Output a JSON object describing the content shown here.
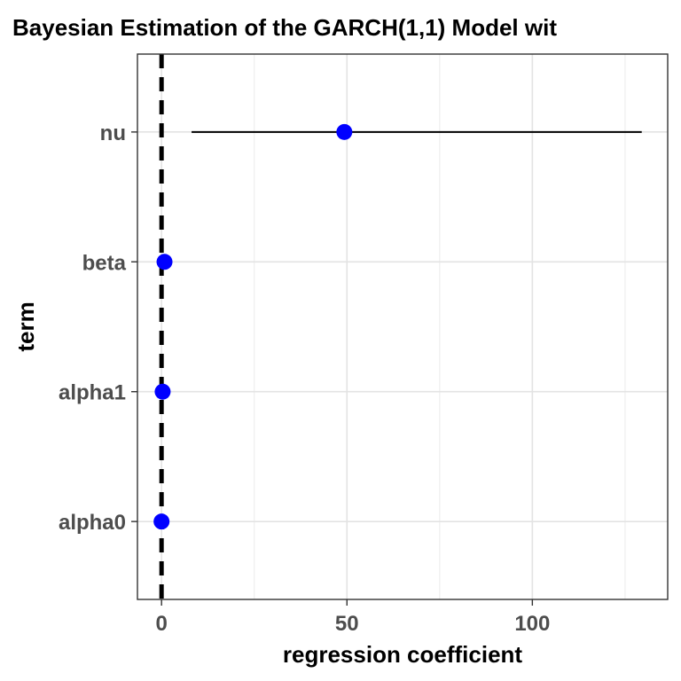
{
  "chart_data": {
    "type": "scatter",
    "title": "Bayesian Estimation of the GARCH(1,1) Model wit",
    "xlabel": "regression coefficient",
    "ylabel": "term",
    "xlim": [
      -6.5,
      136.5
    ],
    "x_ticks": [
      0,
      50,
      100
    ],
    "x_tick_labels": [
      "0",
      "50",
      "100"
    ],
    "categories": [
      "alpha0",
      "alpha1",
      "beta",
      "nu"
    ],
    "points": [
      {
        "term": "alpha0",
        "estimate": 0.0,
        "low": 0.0,
        "high": 0.0
      },
      {
        "term": "alpha1",
        "estimate": 0.3,
        "low": 0.3,
        "high": 0.3
      },
      {
        "term": "beta",
        "estimate": 0.8,
        "low": 0.8,
        "high": 0.8
      },
      {
        "term": "nu",
        "estimate": 49.3,
        "low": 8.1,
        "high": 129.5
      }
    ],
    "reference_line": {
      "x": 0,
      "style": "dashed"
    },
    "point_color": "#0000ff",
    "interval_color": "#000000",
    "grid": true
  }
}
